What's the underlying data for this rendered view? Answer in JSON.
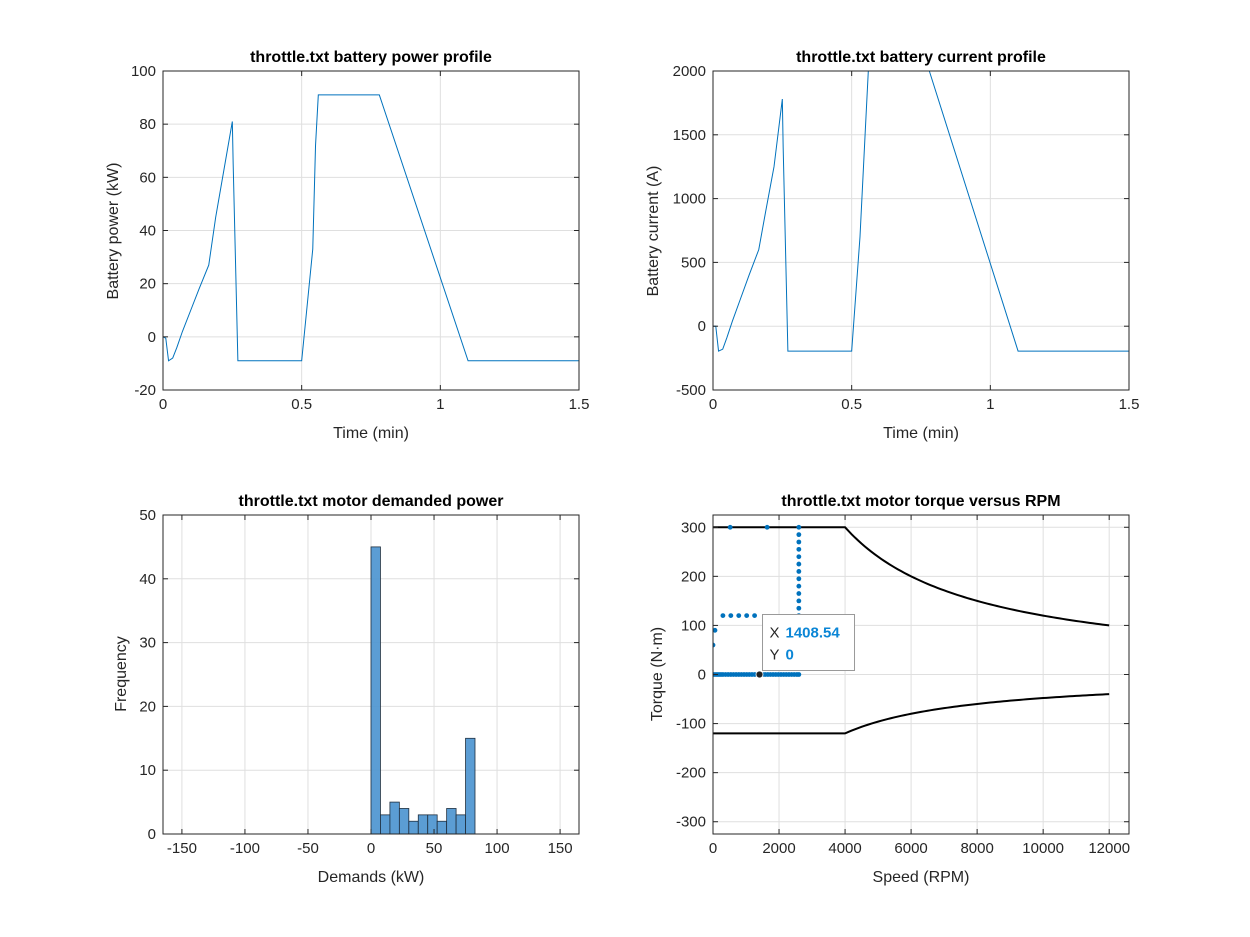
{
  "figure": {
    "background": "#ffffff",
    "grid": true
  },
  "chart_data": [
    {
      "id": "power",
      "type": "line",
      "title": "throttle.txt battery power profile",
      "xlabel": "Time (min)",
      "ylabel": "Battery power (kW)",
      "xlim": [
        0,
        1.5
      ],
      "ylim": [
        -20,
        100
      ],
      "xticks": [
        0,
        0.5,
        1,
        1.5
      ],
      "xtick_labels": [
        "0",
        "0.5",
        "1",
        "1.5"
      ],
      "yticks": [
        -20,
        0,
        20,
        40,
        60,
        80,
        100
      ],
      "ytick_labels": [
        "-20",
        "0",
        "20",
        "40",
        "60",
        "80",
        "100"
      ],
      "color": "#0072bd",
      "series": [
        {
          "x": [
            0,
            0.01,
            0.02,
            0.035,
            0.05,
            0.07,
            0.1,
            0.13,
            0.165,
            0.19,
            0.22,
            0.25,
            0.253,
            0.27,
            0.5,
            0.54,
            0.55,
            0.56,
            0.57,
            0.6,
            0.78,
            1.1,
            1.5
          ],
          "y": [
            0,
            -0.5,
            -9,
            -8,
            -4,
            2,
            10,
            18,
            27,
            45,
            63,
            81,
            65,
            -9,
            -9,
            33,
            72,
            91,
            91,
            91,
            91,
            -9,
            -9
          ]
        }
      ]
    },
    {
      "id": "current",
      "type": "line",
      "title": "throttle.txt battery current profile",
      "xlabel": "Time (min)",
      "ylabel": "Battery current (A)",
      "xlim": [
        0,
        1.5
      ],
      "ylim": [
        -500,
        2000
      ],
      "xticks": [
        0,
        0.5,
        1,
        1.5
      ],
      "xtick_labels": [
        "0",
        "0.5",
        "1",
        "1.5"
      ],
      "yticks": [
        -500,
        0,
        500,
        1000,
        1500,
        2000
      ],
      "ytick_labels": [
        "-500",
        "0",
        "500",
        "1000",
        "1500",
        "2000"
      ],
      "color": "#0072bd",
      "series": [
        {
          "x": [
            0,
            0.01,
            0.02,
            0.035,
            0.05,
            0.07,
            0.1,
            0.13,
            0.165,
            0.19,
            0.22,
            0.25,
            0.253,
            0.27,
            0.5,
            0.53,
            0.55,
            0.56,
            0.57,
            0.6,
            0.78,
            1.1,
            1.5
          ],
          "y": [
            0,
            0,
            -195,
            -180,
            -90,
            40,
            220,
            400,
            600,
            900,
            1250,
            1780,
            1400,
            -195,
            -195,
            700,
            1570,
            2000,
            2000,
            2000,
            2000,
            -195,
            -195
          ]
        }
      ]
    },
    {
      "id": "hist",
      "type": "bar",
      "title": "throttle.txt motor demanded power",
      "xlabel": "Demands (kW)",
      "ylabel": "Frequency",
      "xlim": [
        -165,
        165
      ],
      "ylim": [
        0,
        50
      ],
      "xticks": [
        -150,
        -100,
        -50,
        0,
        50,
        100,
        150
      ],
      "xtick_labels": [
        "-150",
        "-100",
        "-50",
        "0",
        "50",
        "100",
        "150"
      ],
      "yticks": [
        0,
        10,
        20,
        30,
        40,
        50
      ],
      "ytick_labels": [
        "0",
        "10",
        "20",
        "30",
        "40",
        "50"
      ],
      "bar_fill": "#4d95d0",
      "bar_edge": "#1f2f3f",
      "bin_edges": [
        0,
        7.5,
        15,
        22.5,
        30,
        37.5,
        45,
        52.5,
        60,
        67.5,
        75,
        82.5
      ],
      "values": [
        45,
        3,
        5,
        4,
        2,
        3,
        3,
        2,
        4,
        3,
        15
      ]
    },
    {
      "id": "torque",
      "type": "scatter",
      "title": "throttle.txt motor torque versus RPM",
      "xlabel": "Speed (RPM)",
      "ylabel": "Torque (N·m)",
      "xlim": [
        0,
        12600
      ],
      "ylim": [
        -325,
        325
      ],
      "xticks": [
        0,
        2000,
        4000,
        6000,
        8000,
        10000,
        12000
      ],
      "xtick_labels": [
        "0",
        "2000",
        "4000",
        "6000",
        "8000",
        "10000",
        "12000"
      ],
      "yticks": [
        -300,
        -200,
        -100,
        0,
        100,
        200,
        300
      ],
      "ytick_labels": [
        "-300",
        "-200",
        "-100",
        "0",
        "100",
        "200",
        "300"
      ],
      "point_color": "#0072bd",
      "envelope_color": "#000000",
      "envelope": {
        "max_torque": 300,
        "min_torque": -120,
        "base_speed": 4000,
        "max_speed": 12000
      },
      "scatter_points": {
        "x": [
          0,
          60,
          120,
          180,
          240,
          300,
          380,
          460,
          540,
          620,
          700,
          780,
          860,
          940,
          1020,
          1100,
          1180,
          1260,
          1340,
          1420,
          1500,
          1580,
          1660,
          1740,
          1820,
          1900,
          1980,
          2060,
          2140,
          2220,
          2300,
          2380,
          2460,
          2540,
          2600,
          0,
          60,
          300,
          540,
          780,
          1020,
          1260,
          520,
          1640,
          2600,
          2600,
          2600,
          2600,
          2600,
          2600,
          2600,
          2600,
          2600,
          2600,
          2600,
          2600,
          2600,
          2600,
          2600,
          2600,
          2600,
          2600,
          2600,
          2600,
          2600,
          2600,
          2600
        ],
        "y": [
          0,
          0,
          0,
          0,
          0,
          0,
          0,
          0,
          0,
          0,
          0,
          0,
          0,
          0,
          0,
          0,
          0,
          0,
          0,
          0,
          0,
          0,
          0,
          0,
          0,
          0,
          0,
          0,
          0,
          0,
          0,
          0,
          0,
          0,
          0,
          60,
          90,
          120,
          120,
          120,
          120,
          120,
          300,
          300,
          300,
          285,
          270,
          255,
          240,
          225,
          210,
          195,
          180,
          165,
          150,
          135,
          120,
          105,
          90,
          75,
          60,
          45,
          30,
          15,
          20,
          40,
          80
        ]
      },
      "datatip": {
        "x": 1408.54,
        "y": 0,
        "x_label": "X",
        "y_label": "Y",
        "x_text": "1408.54",
        "y_text": "0"
      }
    }
  ]
}
